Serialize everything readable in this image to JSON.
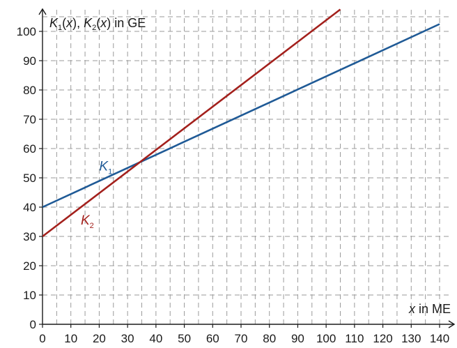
{
  "chart_data": {
    "type": "line",
    "title": "",
    "xlabel": {
      "var": "x",
      "rest": " in ME"
    },
    "ylabel": {
      "parts": [
        {
          "text": "K",
          "style": "italic"
        },
        {
          "text": "1",
          "style": "sub"
        },
        {
          "text": "(",
          "style": "normal"
        },
        {
          "text": "x",
          "style": "italic"
        },
        {
          "text": "), ",
          "style": "normal"
        },
        {
          "text": "K",
          "style": "italic"
        },
        {
          "text": "2",
          "style": "sub"
        },
        {
          "text": "(",
          "style": "normal"
        },
        {
          "text": "x",
          "style": "italic"
        },
        {
          "text": ") in GE",
          "style": "normal"
        }
      ]
    },
    "xlim": [
      0,
      140
    ],
    "ylim": [
      0,
      100
    ],
    "x_ticks": [
      0,
      10,
      20,
      30,
      40,
      50,
      60,
      70,
      80,
      90,
      100,
      110,
      120,
      130,
      140
    ],
    "y_ticks": [
      0,
      10,
      20,
      30,
      40,
      50,
      60,
      70,
      80,
      90,
      100
    ],
    "grid": true,
    "grid_style": "dashed",
    "series": [
      {
        "name": "K1",
        "label_main": "K",
        "label_sub": "1",
        "color": "#1f5a96",
        "x": [
          0,
          140
        ],
        "y": [
          40,
          102.5
        ]
      },
      {
        "name": "K2",
        "label_main": "K",
        "label_sub": "2",
        "color": "#a3201c",
        "x": [
          0,
          105
        ],
        "y": [
          30,
          107.5
        ]
      }
    ]
  }
}
